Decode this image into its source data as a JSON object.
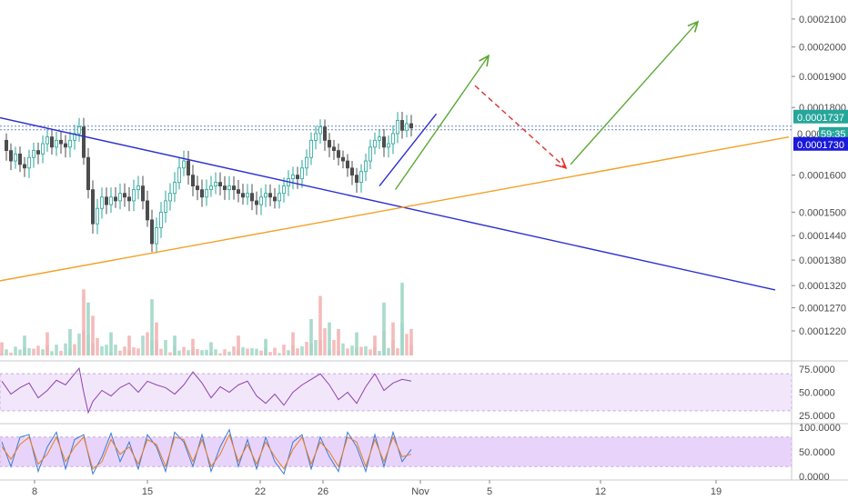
{
  "chart_data": [
    {
      "type": "candlestick",
      "y_scale": "log",
      "ylim": [
        0.000118,
        0.000215
      ],
      "y_ticks": [
        "0.0002100",
        "0.0002000",
        "0.0001900",
        "0.0001800",
        "0.0001600",
        "0.0001500",
        "0.0001440",
        "0.0001380",
        "0.0001320",
        "0.0001270",
        "0.0001220"
      ],
      "x_ticks": [
        "8",
        "15",
        "22",
        "26",
        "Nov",
        "5",
        "12",
        "19"
      ],
      "last_price": "0.0001737",
      "countdown": "0.000",
      "countdown_time": "59:35",
      "level_label": "0.0001730",
      "series": [
        {
          "name": "",
          "shape": "price",
          "x": [
            0,
            1,
            2,
            3,
            4,
            5,
            6,
            7,
            8,
            9,
            10,
            11,
            12,
            13,
            14,
            15,
            16,
            17,
            18,
            19,
            20,
            21,
            22,
            23,
            24,
            25,
            26,
            27,
            28,
            29,
            30,
            31,
            32,
            33,
            34,
            35,
            36,
            37,
            38,
            39,
            40,
            41,
            42,
            43,
            44,
            45,
            46,
            47,
            48,
            49,
            50,
            51,
            52,
            53,
            54,
            55,
            56,
            57,
            58,
            59,
            60,
            61,
            62,
            63,
            64,
            65,
            66,
            67,
            68,
            69,
            70,
            71,
            72,
            73,
            74,
            75,
            76,
            77,
            78,
            79,
            80,
            81,
            82,
            83,
            84,
            85,
            86,
            87,
            88,
            89,
            90
          ],
          "y": [
            0.00017,
            0.000167,
            0.000164,
            0.000166,
            0.000163,
            0.000162,
            0.000165,
            0.000167,
            0.000166,
            0.000169,
            0.000171,
            0.000168,
            0.00017,
            0.000169,
            0.000168,
            0.00017,
            0.000172,
            0.000174,
            0.000165,
            0.000156,
            0.000147,
            0.000151,
            0.000154,
            0.000152,
            0.000154,
            0.000153,
            0.000155,
            0.000154,
            0.000153,
            0.000156,
            0.000157,
            0.000153,
            0.000148,
            0.000142,
            0.000146,
            0.00015,
            0.000153,
            0.000155,
            0.000158,
            0.000162,
            0.000164,
            0.00016,
            0.000157,
            0.000156,
            0.000154,
            0.000156,
            0.000157,
            0.000158,
            0.000157,
            0.000156,
            0.000157,
            0.000156,
            0.000155,
            0.000154,
            0.000155,
            0.000153,
            0.000152,
            0.000154,
            0.000155,
            0.000154,
            0.000153,
            0.000155,
            0.000157,
            0.000159,
            0.00016,
            0.000159,
            0.000162,
            0.000165,
            0.00017,
            0.000172,
            0.000174,
            0.00017,
            0.000168,
            0.000167,
            0.000165,
            0.000164,
            0.000162,
            0.00016,
            0.000158,
            0.000161,
            0.000164,
            0.000168,
            0.00017,
            0.000171,
            0.000168,
            0.000169,
            0.000172,
            0.000176,
            0.000173,
            0.000175,
            0.0001737
          ]
        },
        {
          "name": "",
          "shape": "volume",
          "x": [
            0,
            5,
            10,
            15,
            18,
            19,
            20,
            24,
            28,
            33,
            34,
            38,
            42,
            46,
            52,
            58,
            64,
            68,
            70,
            72,
            74,
            78,
            82,
            84,
            86,
            88,
            90
          ],
          "y": [
            0.2,
            0.3,
            0.35,
            0.4,
            1.0,
            0.8,
            0.6,
            0.35,
            0.3,
            0.85,
            0.5,
            0.3,
            0.25,
            0.2,
            0.3,
            0.25,
            0.35,
            0.55,
            0.9,
            0.5,
            0.4,
            0.35,
            0.3,
            0.8,
            0.5,
            1.1,
            0.4
          ]
        },
        {
          "name": "",
          "shape": "trendline",
          "color": "#2d2fd0",
          "x": [
            -1,
            170
          ],
          "y": [
            0.000177,
            0.000131
          ]
        },
        {
          "name": "",
          "shape": "trendline",
          "color": "#f4a024",
          "x": [
            -1,
            173
          ],
          "y": [
            0.000133,
            0.000171
          ]
        },
        {
          "name": "",
          "shape": "trendline",
          "color": "#2d2fd0",
          "x": [
            83,
            95.5
          ],
          "y": [
            0.000157,
            0.000178
          ]
        },
        {
          "name": "",
          "shape": "arrow",
          "color": "#5aa832",
          "x": [
            86.5,
            107
          ],
          "y": [
            0.000156,
            0.000197
          ]
        },
        {
          "name": "",
          "shape": "arrow-dashed",
          "color": "#e03030",
          "x": [
            104,
            124
          ],
          "y": [
            0.000187,
            0.000162
          ]
        },
        {
          "name": "",
          "shape": "arrow",
          "color": "#5aa832",
          "x": [
            125,
            153
          ],
          "y": [
            0.000163,
            0.000209
          ]
        }
      ],
      "resistance_level": 0.0001737
    },
    {
      "type": "line",
      "ylim": [
        20,
        80
      ],
      "y_ticks": [
        "75.0000",
        "50.0000",
        "25.0000"
      ],
      "band": [
        30,
        70
      ],
      "series": [
        {
          "name": "",
          "color": "#8e44ad",
          "x": [
            0,
            2,
            4,
            6,
            8,
            10,
            12,
            14,
            16,
            17,
            18,
            19,
            20,
            22,
            24,
            26,
            28,
            30,
            32,
            34,
            36,
            38,
            40,
            42,
            44,
            46,
            48,
            50,
            52,
            54,
            56,
            58,
            60,
            62,
            64,
            66,
            68,
            70,
            72,
            74,
            76,
            78,
            80,
            82,
            84,
            86,
            88,
            90
          ],
          "y": [
            62,
            48,
            55,
            60,
            44,
            52,
            63,
            58,
            70,
            76,
            50,
            28,
            40,
            52,
            46,
            55,
            60,
            50,
            62,
            58,
            55,
            48,
            58,
            72,
            60,
            44,
            56,
            50,
            58,
            62,
            46,
            38,
            48,
            36,
            50,
            58,
            64,
            70,
            58,
            42,
            50,
            38,
            56,
            70,
            52,
            60,
            64,
            62
          ]
        }
      ]
    },
    {
      "type": "line",
      "ylim": [
        0,
        100
      ],
      "y_ticks": [
        "100.0000",
        "50.0000",
        "0.0000"
      ],
      "band": [
        20,
        80
      ],
      "series": [
        {
          "name": "",
          "color": "#3a7bd5",
          "x": [
            0,
            2,
            4,
            6,
            8,
            10,
            12,
            14,
            16,
            18,
            20,
            22,
            24,
            26,
            28,
            30,
            32,
            34,
            36,
            38,
            40,
            42,
            44,
            46,
            48,
            50,
            52,
            54,
            56,
            58,
            60,
            62,
            64,
            66,
            68,
            70,
            72,
            74,
            76,
            78,
            80,
            82,
            84,
            86,
            88,
            90
          ],
          "y": [
            70,
            20,
            80,
            85,
            10,
            60,
            90,
            15,
            75,
            85,
            5,
            40,
            88,
            30,
            70,
            15,
            85,
            60,
            10,
            90,
            70,
            20,
            85,
            10,
            60,
            95,
            20,
            75,
            15,
            80,
            30,
            5,
            70,
            85,
            15,
            80,
            40,
            10,
            90,
            60,
            10,
            85,
            20,
            90,
            30,
            55
          ]
        },
        {
          "name": "",
          "color": "#e67e22",
          "x": [
            0,
            2,
            4,
            6,
            8,
            10,
            12,
            14,
            16,
            18,
            20,
            22,
            24,
            26,
            28,
            30,
            32,
            34,
            36,
            38,
            40,
            42,
            44,
            46,
            48,
            50,
            52,
            54,
            56,
            58,
            60,
            62,
            64,
            66,
            68,
            70,
            72,
            74,
            76,
            78,
            80,
            82,
            84,
            86,
            88,
            90
          ],
          "y": [
            60,
            35,
            65,
            80,
            25,
            45,
            80,
            30,
            60,
            80,
            15,
            30,
            75,
            45,
            60,
            25,
            75,
            65,
            20,
            80,
            75,
            30,
            75,
            20,
            45,
            85,
            30,
            65,
            25,
            70,
            40,
            15,
            55,
            80,
            25,
            70,
            50,
            20,
            80,
            70,
            20,
            75,
            30,
            80,
            40,
            45
          ]
        }
      ]
    }
  ]
}
